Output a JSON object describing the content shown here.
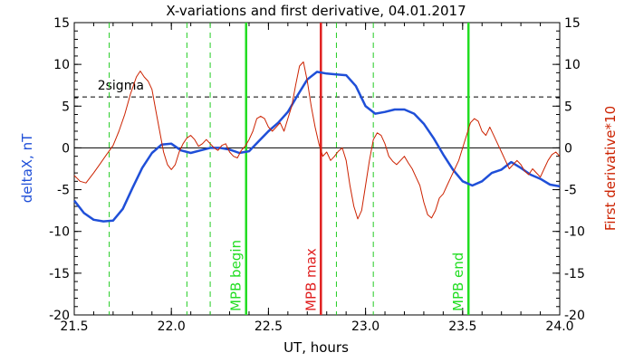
{
  "chart_data": {
    "type": "line",
    "title": "X-variations and first derivative, 04.01.2017",
    "xlabel": "UT, hours",
    "ylabel_left": "deltaX, nT",
    "ylabel_right": "First derivative*10",
    "xlim": [
      21.5,
      24.0
    ],
    "ylim": [
      -20,
      15
    ],
    "x_ticks": [
      "21.5",
      "22.0",
      "22.5",
      "23.0",
      "23.5",
      "24.0"
    ],
    "x_tick_values": [
      21.5,
      22.0,
      22.5,
      23.0,
      23.5,
      24.0
    ],
    "y_ticks": [
      "15",
      "10",
      "5",
      "0",
      "-5",
      "-10",
      "-15",
      "-20"
    ],
    "y_tick_values": [
      15,
      10,
      5,
      0,
      -5,
      -10,
      -15,
      -20
    ],
    "threshold": {
      "label": "2sigma",
      "value": 6.1
    },
    "zero_line": 0,
    "series": [
      {
        "name": "deltaX",
        "color": "#1f4fd8",
        "points": [
          [
            21.5,
            -6.3
          ],
          [
            21.55,
            -7.8
          ],
          [
            21.6,
            -8.6
          ],
          [
            21.65,
            -8.8
          ],
          [
            21.7,
            -8.7
          ],
          [
            21.75,
            -7.3
          ],
          [
            21.8,
            -4.8
          ],
          [
            21.85,
            -2.4
          ],
          [
            21.9,
            -0.6
          ],
          [
            21.95,
            0.4
          ],
          [
            22.0,
            0.5
          ],
          [
            22.05,
            -0.3
          ],
          [
            22.1,
            -0.6
          ],
          [
            22.15,
            -0.3
          ],
          [
            22.2,
            0.0
          ],
          [
            22.25,
            0.0
          ],
          [
            22.3,
            -0.2
          ],
          [
            22.35,
            -0.6
          ],
          [
            22.4,
            -0.4
          ],
          [
            22.45,
            0.8
          ],
          [
            22.5,
            2.0
          ],
          [
            22.55,
            3.0
          ],
          [
            22.6,
            4.3
          ],
          [
            22.65,
            6.3
          ],
          [
            22.7,
            8.2
          ],
          [
            22.75,
            9.1
          ],
          [
            22.8,
            8.9
          ],
          [
            22.85,
            8.8
          ],
          [
            22.9,
            8.7
          ],
          [
            22.95,
            7.4
          ],
          [
            23.0,
            5.0
          ],
          [
            23.05,
            4.1
          ],
          [
            23.1,
            4.3
          ],
          [
            23.15,
            4.6
          ],
          [
            23.2,
            4.6
          ],
          [
            23.25,
            4.1
          ],
          [
            23.3,
            2.9
          ],
          [
            23.35,
            1.2
          ],
          [
            23.4,
            -0.8
          ],
          [
            23.45,
            -2.6
          ],
          [
            23.5,
            -4.0
          ],
          [
            23.55,
            -4.5
          ],
          [
            23.6,
            -4.0
          ],
          [
            23.65,
            -3.0
          ],
          [
            23.7,
            -2.6
          ],
          [
            23.75,
            -1.7
          ],
          [
            23.8,
            -2.4
          ],
          [
            23.85,
            -3.2
          ],
          [
            23.9,
            -3.7
          ],
          [
            23.95,
            -4.4
          ],
          [
            24.0,
            -4.6
          ]
        ]
      },
      {
        "name": "First derivative*10",
        "color": "#cc2200",
        "points": [
          [
            21.5,
            -3.3
          ],
          [
            21.53,
            -4.0
          ],
          [
            21.56,
            -4.2
          ],
          [
            21.6,
            -3.0
          ],
          [
            21.63,
            -2.0
          ],
          [
            21.66,
            -1.0
          ],
          [
            21.7,
            0.3
          ],
          [
            21.73,
            2.0
          ],
          [
            21.76,
            4.0
          ],
          [
            21.79,
            6.5
          ],
          [
            21.82,
            8.5
          ],
          [
            21.84,
            9.2
          ],
          [
            21.86,
            8.5
          ],
          [
            21.88,
            8.0
          ],
          [
            21.9,
            7.0
          ],
          [
            21.92,
            4.5
          ],
          [
            21.94,
            2.0
          ],
          [
            21.96,
            -0.5
          ],
          [
            21.98,
            -2.0
          ],
          [
            22.0,
            -2.6
          ],
          [
            22.02,
            -2.0
          ],
          [
            22.04,
            -0.5
          ],
          [
            22.06,
            0.5
          ],
          [
            22.08,
            1.2
          ],
          [
            22.1,
            1.5
          ],
          [
            22.12,
            1.0
          ],
          [
            22.14,
            0.2
          ],
          [
            22.16,
            0.5
          ],
          [
            22.18,
            1.0
          ],
          [
            22.2,
            0.5
          ],
          [
            22.22,
            0.0
          ],
          [
            22.24,
            -0.3
          ],
          [
            22.26,
            0.3
          ],
          [
            22.28,
            0.5
          ],
          [
            22.3,
            -0.5
          ],
          [
            22.32,
            -1.0
          ],
          [
            22.34,
            -1.2
          ],
          [
            22.36,
            -0.3
          ],
          [
            22.38,
            0.2
          ],
          [
            22.4,
            1.0
          ],
          [
            22.42,
            2.0
          ],
          [
            22.44,
            3.5
          ],
          [
            22.46,
            3.8
          ],
          [
            22.48,
            3.5
          ],
          [
            22.5,
            2.5
          ],
          [
            22.52,
            2.0
          ],
          [
            22.54,
            2.5
          ],
          [
            22.56,
            3.0
          ],
          [
            22.58,
            2.0
          ],
          [
            22.6,
            3.5
          ],
          [
            22.62,
            5.0
          ],
          [
            22.64,
            7.5
          ],
          [
            22.66,
            9.8
          ],
          [
            22.68,
            10.3
          ],
          [
            22.7,
            8.0
          ],
          [
            22.72,
            5.0
          ],
          [
            22.74,
            2.5
          ],
          [
            22.76,
            0.5
          ],
          [
            22.78,
            -1.0
          ],
          [
            22.8,
            -0.5
          ],
          [
            22.82,
            -1.5
          ],
          [
            22.84,
            -1.0
          ],
          [
            22.86,
            -0.4
          ],
          [
            22.88,
            0.0
          ],
          [
            22.9,
            -1.5
          ],
          [
            22.92,
            -4.5
          ],
          [
            22.94,
            -7.0
          ],
          [
            22.96,
            -8.5
          ],
          [
            22.98,
            -7.5
          ],
          [
            23.0,
            -4.5
          ],
          [
            23.02,
            -1.5
          ],
          [
            23.04,
            1.0
          ],
          [
            23.06,
            1.8
          ],
          [
            23.08,
            1.5
          ],
          [
            23.1,
            0.5
          ],
          [
            23.12,
            -1.0
          ],
          [
            23.14,
            -1.6
          ],
          [
            23.16,
            -2.0
          ],
          [
            23.18,
            -1.5
          ],
          [
            23.2,
            -1.0
          ],
          [
            23.22,
            -1.8
          ],
          [
            23.24,
            -2.5
          ],
          [
            23.26,
            -3.5
          ],
          [
            23.28,
            -4.5
          ],
          [
            23.3,
            -6.5
          ],
          [
            23.32,
            -8.0
          ],
          [
            23.34,
            -8.4
          ],
          [
            23.36,
            -7.5
          ],
          [
            23.38,
            -6.0
          ],
          [
            23.4,
            -5.5
          ],
          [
            23.42,
            -4.5
          ],
          [
            23.44,
            -3.5
          ],
          [
            23.46,
            -2.5
          ],
          [
            23.48,
            -1.5
          ],
          [
            23.5,
            0.0
          ],
          [
            23.52,
            1.5
          ],
          [
            23.54,
            3.0
          ],
          [
            23.56,
            3.5
          ],
          [
            23.58,
            3.2
          ],
          [
            23.6,
            2.0
          ],
          [
            23.62,
            1.5
          ],
          [
            23.64,
            2.5
          ],
          [
            23.66,
            1.5
          ],
          [
            23.68,
            0.5
          ],
          [
            23.7,
            -0.5
          ],
          [
            23.72,
            -1.5
          ],
          [
            23.74,
            -2.5
          ],
          [
            23.76,
            -2.0
          ],
          [
            23.78,
            -1.5
          ],
          [
            23.8,
            -2.0
          ],
          [
            23.82,
            -2.8
          ],
          [
            23.84,
            -3.2
          ],
          [
            23.86,
            -2.5
          ],
          [
            23.88,
            -3.0
          ],
          [
            23.9,
            -3.5
          ],
          [
            23.92,
            -2.5
          ],
          [
            23.94,
            -1.5
          ],
          [
            23.96,
            -0.8
          ],
          [
            23.98,
            -0.5
          ],
          [
            24.0,
            -1.0
          ]
        ]
      }
    ],
    "vertical_lines": [
      {
        "x": 21.68,
        "style": "dashed",
        "color": "#22cc22",
        "label": ""
      },
      {
        "x": 22.08,
        "style": "dashed",
        "color": "#22cc22",
        "label": ""
      },
      {
        "x": 22.2,
        "style": "dashed",
        "color": "#22cc22",
        "label": ""
      },
      {
        "x": 22.385,
        "style": "solid",
        "color": "#22dd22",
        "label": "MPB begin"
      },
      {
        "x": 22.77,
        "style": "solid",
        "color": "#e02020",
        "label": "MPB max"
      },
      {
        "x": 22.85,
        "style": "dashed",
        "color": "#22cc22",
        "label": ""
      },
      {
        "x": 23.04,
        "style": "dashed",
        "color": "#22cc22",
        "label": ""
      },
      {
        "x": 23.53,
        "style": "solid",
        "color": "#22dd22",
        "label": "MPB end"
      }
    ],
    "colors": {
      "left_axis_label": "#1f4fd8",
      "right_axis_label": "#cc2200",
      "threshold": "#000000",
      "zero_line": "#000000"
    }
  }
}
